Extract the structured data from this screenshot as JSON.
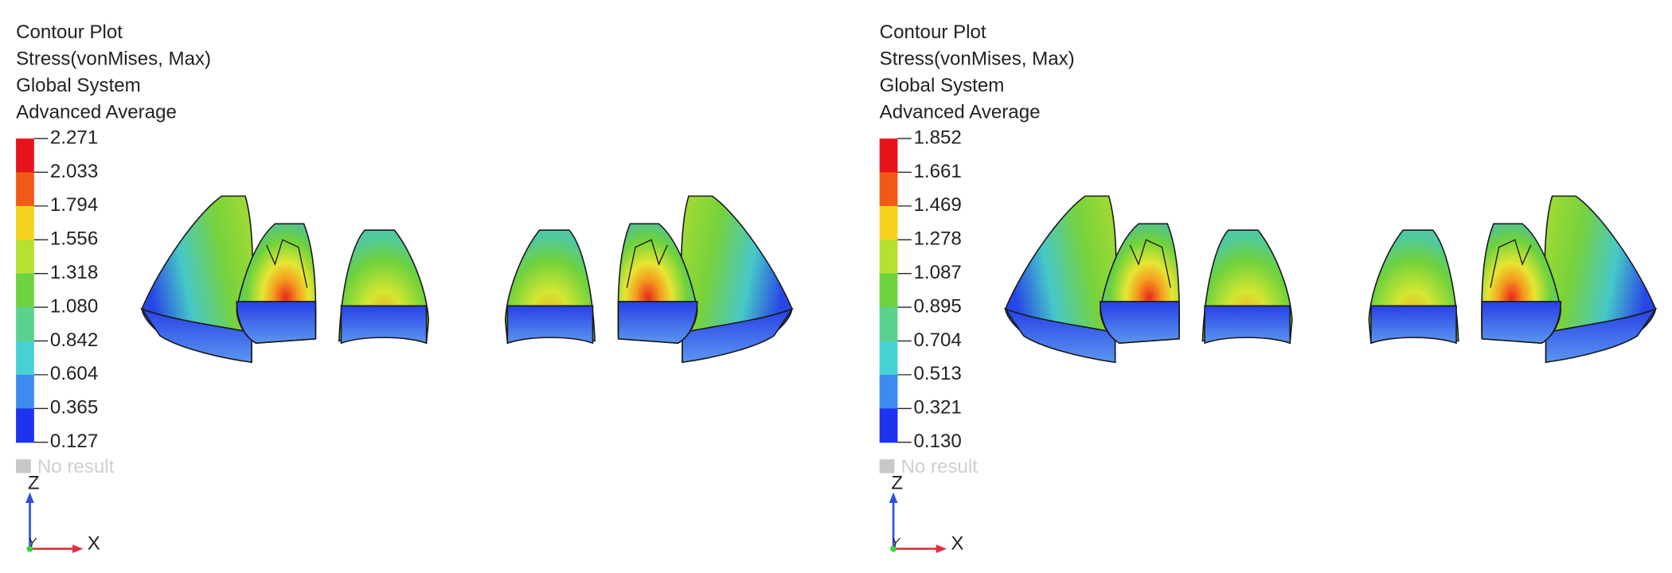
{
  "panels": [
    {
      "header": [
        "Contour Plot",
        "Stress(vonMises, Max)",
        "Global System",
        "Advanced Average"
      ],
      "legend": {
        "values": [
          "2.271",
          "2.033",
          "1.794",
          "1.556",
          "1.318",
          "1.080",
          "0.842",
          "0.604",
          "0.365",
          "0.127"
        ],
        "colors": [
          "#e8141c",
          "#f05a14",
          "#f5d21e",
          "#b4e132",
          "#6ed241",
          "#5ad28c",
          "#46d2d2",
          "#3c8cf0",
          "#1e32f0"
        ]
      },
      "no_result": "No result",
      "axes": {
        "z": "Z",
        "y": "Y",
        "x": "X"
      }
    },
    {
      "header": [
        "Contour Plot",
        "Stress(vonMises, Max)",
        "Global System",
        "Advanced Average"
      ],
      "legend": {
        "values": [
          "1.852",
          "1.661",
          "1.469",
          "1.278",
          "1.087",
          "0.895",
          "0.704",
          "0.513",
          "0.321",
          "0.130"
        ],
        "colors": [
          "#e8141c",
          "#f05a14",
          "#f5d21e",
          "#b4e132",
          "#6ed241",
          "#5ad28c",
          "#46d2d2",
          "#3c8cf0",
          "#1e32f0"
        ]
      },
      "no_result": "No result",
      "axes": {
        "z": "Z",
        "y": "Y",
        "x": "X"
      }
    }
  ]
}
